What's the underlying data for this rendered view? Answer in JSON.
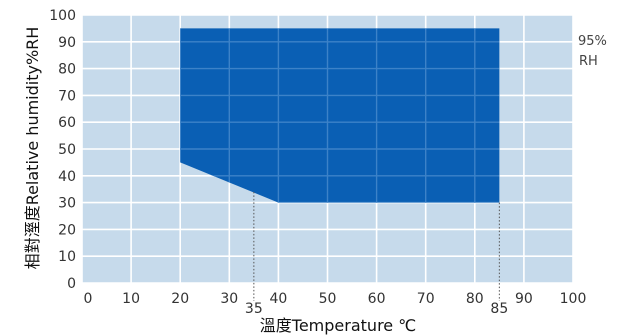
{
  "chart_data": {
    "type": "area",
    "title": "",
    "xlabel": "溫度Temperature ℃",
    "ylabel": "相對溼度Relative humidity%RH",
    "xlim": [
      0,
      100
    ],
    "ylim": [
      0,
      100
    ],
    "x_ticks": [
      0,
      10,
      20,
      30,
      40,
      50,
      60,
      70,
      80,
      90,
      100
    ],
    "y_ticks": [
      0,
      10,
      20,
      30,
      40,
      50,
      60,
      70,
      80,
      90,
      100
    ],
    "grid": true,
    "region": {
      "points": [
        [
          20,
          95
        ],
        [
          85,
          95
        ],
        [
          85,
          30
        ],
        [
          40,
          30
        ],
        [
          20,
          45
        ]
      ]
    },
    "markers": [
      {
        "x": 35,
        "label": "35"
      },
      {
        "x": 85,
        "label": "85"
      }
    ],
    "annotation": {
      "line1": "95%",
      "line2": "RH"
    },
    "colors": {
      "plot_background": "#c6daeb",
      "grid": "#ffffff",
      "region_fill": "#0a5fb4",
      "region_grid": "#3c82c8"
    }
  }
}
